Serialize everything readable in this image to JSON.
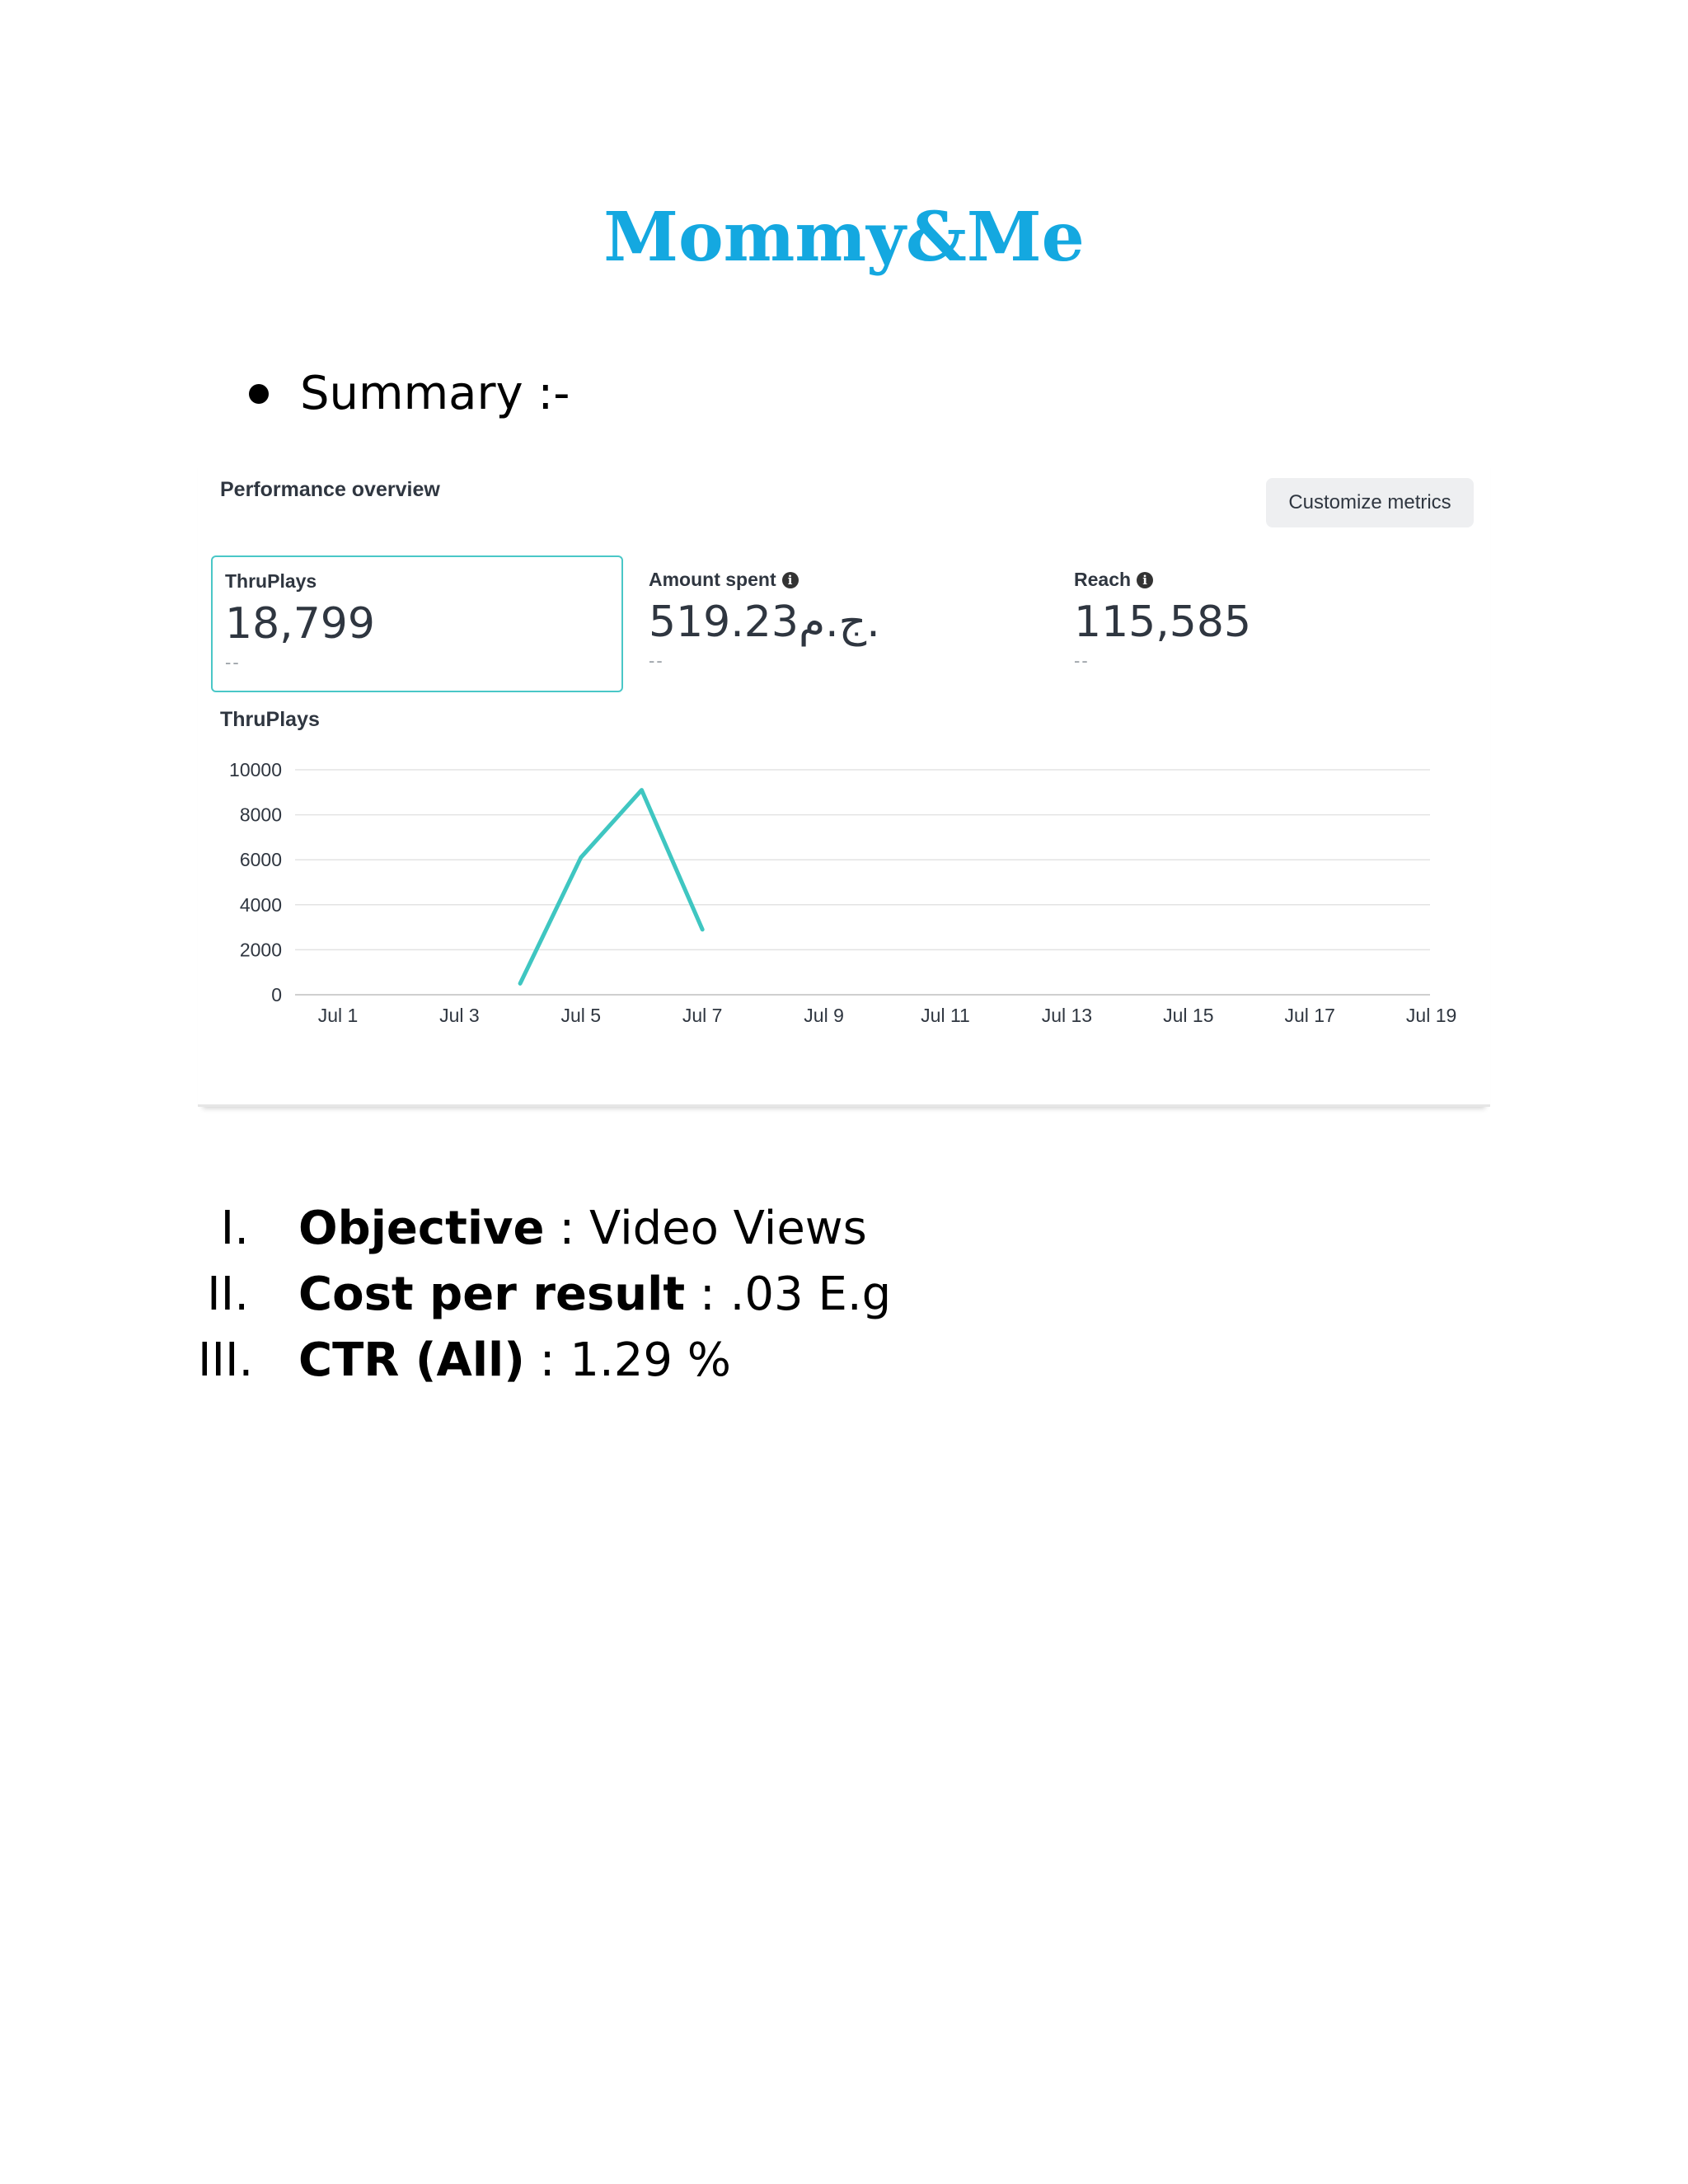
{
  "document": {
    "title": "Mommy&Me",
    "bullet": "Summary :-"
  },
  "card": {
    "title": "Performance overview",
    "customize_label": "Customize metrics",
    "metrics": [
      {
        "label": "ThruPlays",
        "value": "18,799",
        "compare": "--",
        "info": false,
        "selected": true
      },
      {
        "label": "Amount spent",
        "value": "519.23ج.م.",
        "compare": "--",
        "info": true,
        "selected": false
      },
      {
        "label": "Reach",
        "value": "115,585",
        "compare": "--",
        "info": true,
        "selected": false
      }
    ],
    "chart_label": "ThruPlays"
  },
  "chart_data": {
    "type": "line",
    "title": "ThruPlays",
    "x_ticks": [
      "Jul 1",
      "Jul 3",
      "Jul 5",
      "Jul 7",
      "Jul 9",
      "Jul 11",
      "Jul 13",
      "Jul 15",
      "Jul 17",
      "Jul 19"
    ],
    "y_ticks": [
      0,
      2000,
      4000,
      6000,
      8000,
      10000
    ],
    "ylim": [
      0,
      10000
    ],
    "xlim": [
      "Jul 1",
      "Jul 19"
    ],
    "grid": true,
    "color": "#3fc6c1",
    "series": [
      {
        "x": [
          "Jul 4",
          "Jul 5",
          "Jul 6",
          "Jul 7"
        ],
        "values": [
          500,
          6100,
          9100,
          2900
        ]
      }
    ]
  },
  "list": [
    {
      "numeral": "I.",
      "label": "Objective",
      "value": " : Video Views"
    },
    {
      "numeral": "II.",
      "label": "Cost per result",
      "value": " : .03 E.g"
    },
    {
      "numeral": "III.",
      "label": "CTR (All)",
      "value": " : 1.29 %"
    }
  ]
}
